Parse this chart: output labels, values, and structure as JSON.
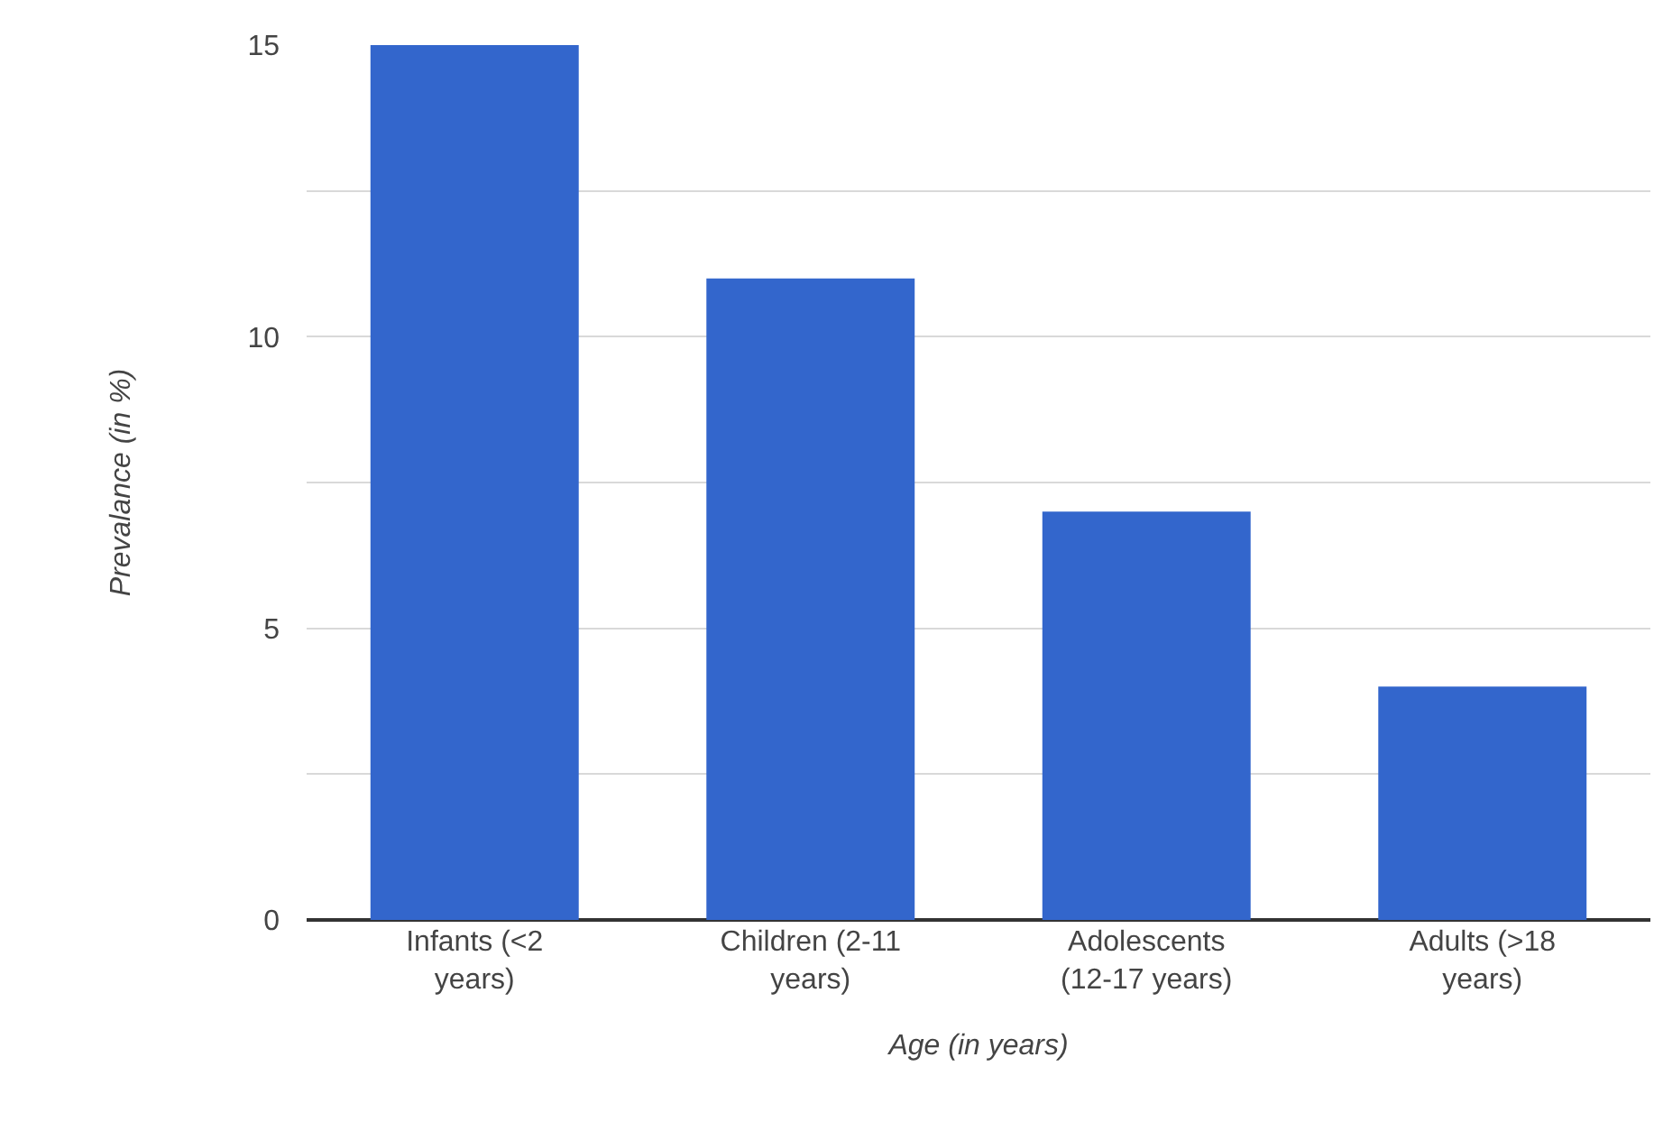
{
  "chart_data": {
    "type": "bar",
    "xlabel": "Age (in years)",
    "ylabel": "Prevalance (in %)",
    "categories": [
      "Infants (<2\nyears)",
      "Children (2-11\nyears)",
      "Adolescents\n(12-17 years)",
      "Adults (>18\nyears)"
    ],
    "values": [
      15,
      11,
      7,
      4
    ],
    "color": "#3366cc",
    "ylim": [
      0,
      15
    ],
    "yticks": [
      0,
      {
        "value": 2.5,
        "label": null
      },
      5,
      {
        "value": 7.5,
        "label": null
      },
      10,
      {
        "value": 12.5,
        "label": null
      },
      15
    ],
    "grid": "y"
  }
}
